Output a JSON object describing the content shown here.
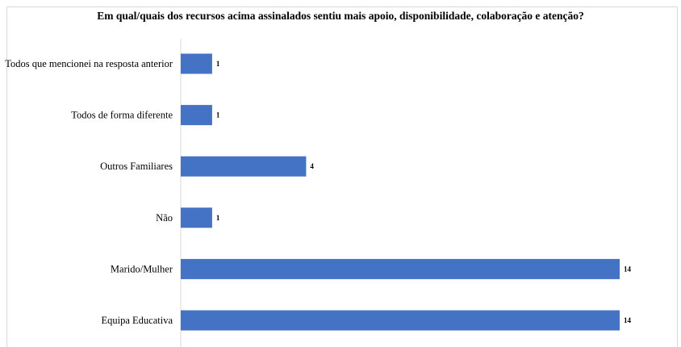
{
  "chart_data": {
    "type": "bar",
    "orientation": "horizontal",
    "title": "Em qual/quais dos recursos acima assinalados sentiu mais apoio, disponibilidade, colaboração e atenção?",
    "categories": [
      "Todos que mencionei na resposta anterior",
      "Todos de forma diferente",
      "Outros Familiares",
      "Não",
      "Marido/Mulher",
      "Equipa Educativa"
    ],
    "values": [
      1,
      1,
      4,
      1,
      14,
      14
    ],
    "data_labels": [
      "1",
      "1",
      "4",
      "1",
      "14",
      "14"
    ],
    "xlim": [
      0,
      14
    ],
    "bar_color": "#4472c4",
    "grid": false,
    "legend": "none"
  }
}
